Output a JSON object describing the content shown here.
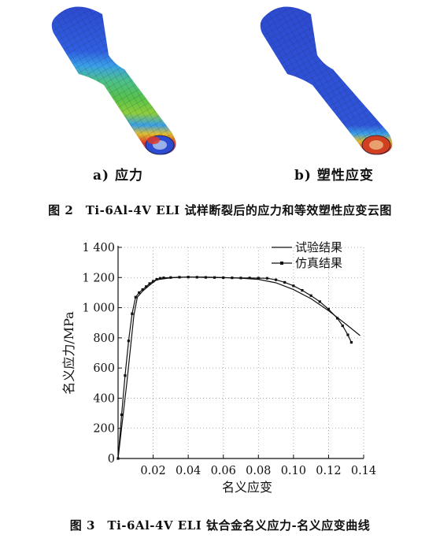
{
  "figure2": {
    "label_a": "a) 应力",
    "label_b": "b) 塑性应变",
    "caption": "图 2　Ti-6Al-4V ELI 试样断裂后的应力和等效塑性应变云图"
  },
  "figure3": {
    "caption": "图 3　Ti-6Al-4V ELI 钛合金名义应力-名义应变曲线"
  },
  "chart_data": {
    "type": "line",
    "title": "",
    "xlabel": "名义应变",
    "ylabel": "名义应力/MPa",
    "xlim": [
      0,
      0.14
    ],
    "ylim": [
      0,
      1400
    ],
    "xticks": [
      0.02,
      0.04,
      0.06,
      0.08,
      0.1,
      0.12,
      0.14
    ],
    "xtick_labels": [
      "0.02",
      "0.04",
      "0.06",
      "0.08",
      "0.10",
      "0.12",
      "0.14"
    ],
    "yticks": [
      0,
      200,
      400,
      600,
      800,
      1000,
      1200,
      1400
    ],
    "ytick_labels": [
      "0",
      "200",
      "400",
      "600",
      "800",
      "1 000",
      "1 200",
      "1 400"
    ],
    "grid": "dotted",
    "legend_position": "top-right",
    "series": [
      {
        "name": "试验结果",
        "style": "solid",
        "color": "#111111",
        "x": [
          0,
          0.005,
          0.009,
          0.011,
          0.014,
          0.018,
          0.022,
          0.03,
          0.04,
          0.05,
          0.06,
          0.07,
          0.08,
          0.09,
          0.1,
          0.11,
          0.12,
          0.13,
          0.138
        ],
        "y": [
          0,
          500,
          950,
          1070,
          1110,
          1150,
          1185,
          1198,
          1203,
          1203,
          1200,
          1196,
          1188,
          1165,
          1120,
          1060,
          980,
          890,
          815
        ]
      },
      {
        "name": "仿真结果",
        "style": "line-square",
        "color": "#111111",
        "x": [
          0,
          0.002,
          0.004,
          0.006,
          0.008,
          0.01,
          0.012,
          0.014,
          0.016,
          0.018,
          0.02,
          0.022,
          0.024,
          0.026,
          0.03,
          0.035,
          0.04,
          0.045,
          0.05,
          0.055,
          0.06,
          0.065,
          0.07,
          0.075,
          0.08,
          0.085,
          0.09,
          0.095,
          0.1,
          0.105,
          0.11,
          0.115,
          0.12,
          0.125,
          0.128,
          0.131,
          0.133
        ],
        "y": [
          0,
          290,
          550,
          780,
          960,
          1070,
          1100,
          1120,
          1140,
          1160,
          1175,
          1188,
          1195,
          1198,
          1200,
          1202,
          1203,
          1202,
          1201,
          1200,
          1199,
          1198,
          1197,
          1197,
          1196,
          1195,
          1185,
          1168,
          1145,
          1115,
          1080,
          1040,
          990,
          930,
          880,
          820,
          770
        ]
      }
    ]
  }
}
